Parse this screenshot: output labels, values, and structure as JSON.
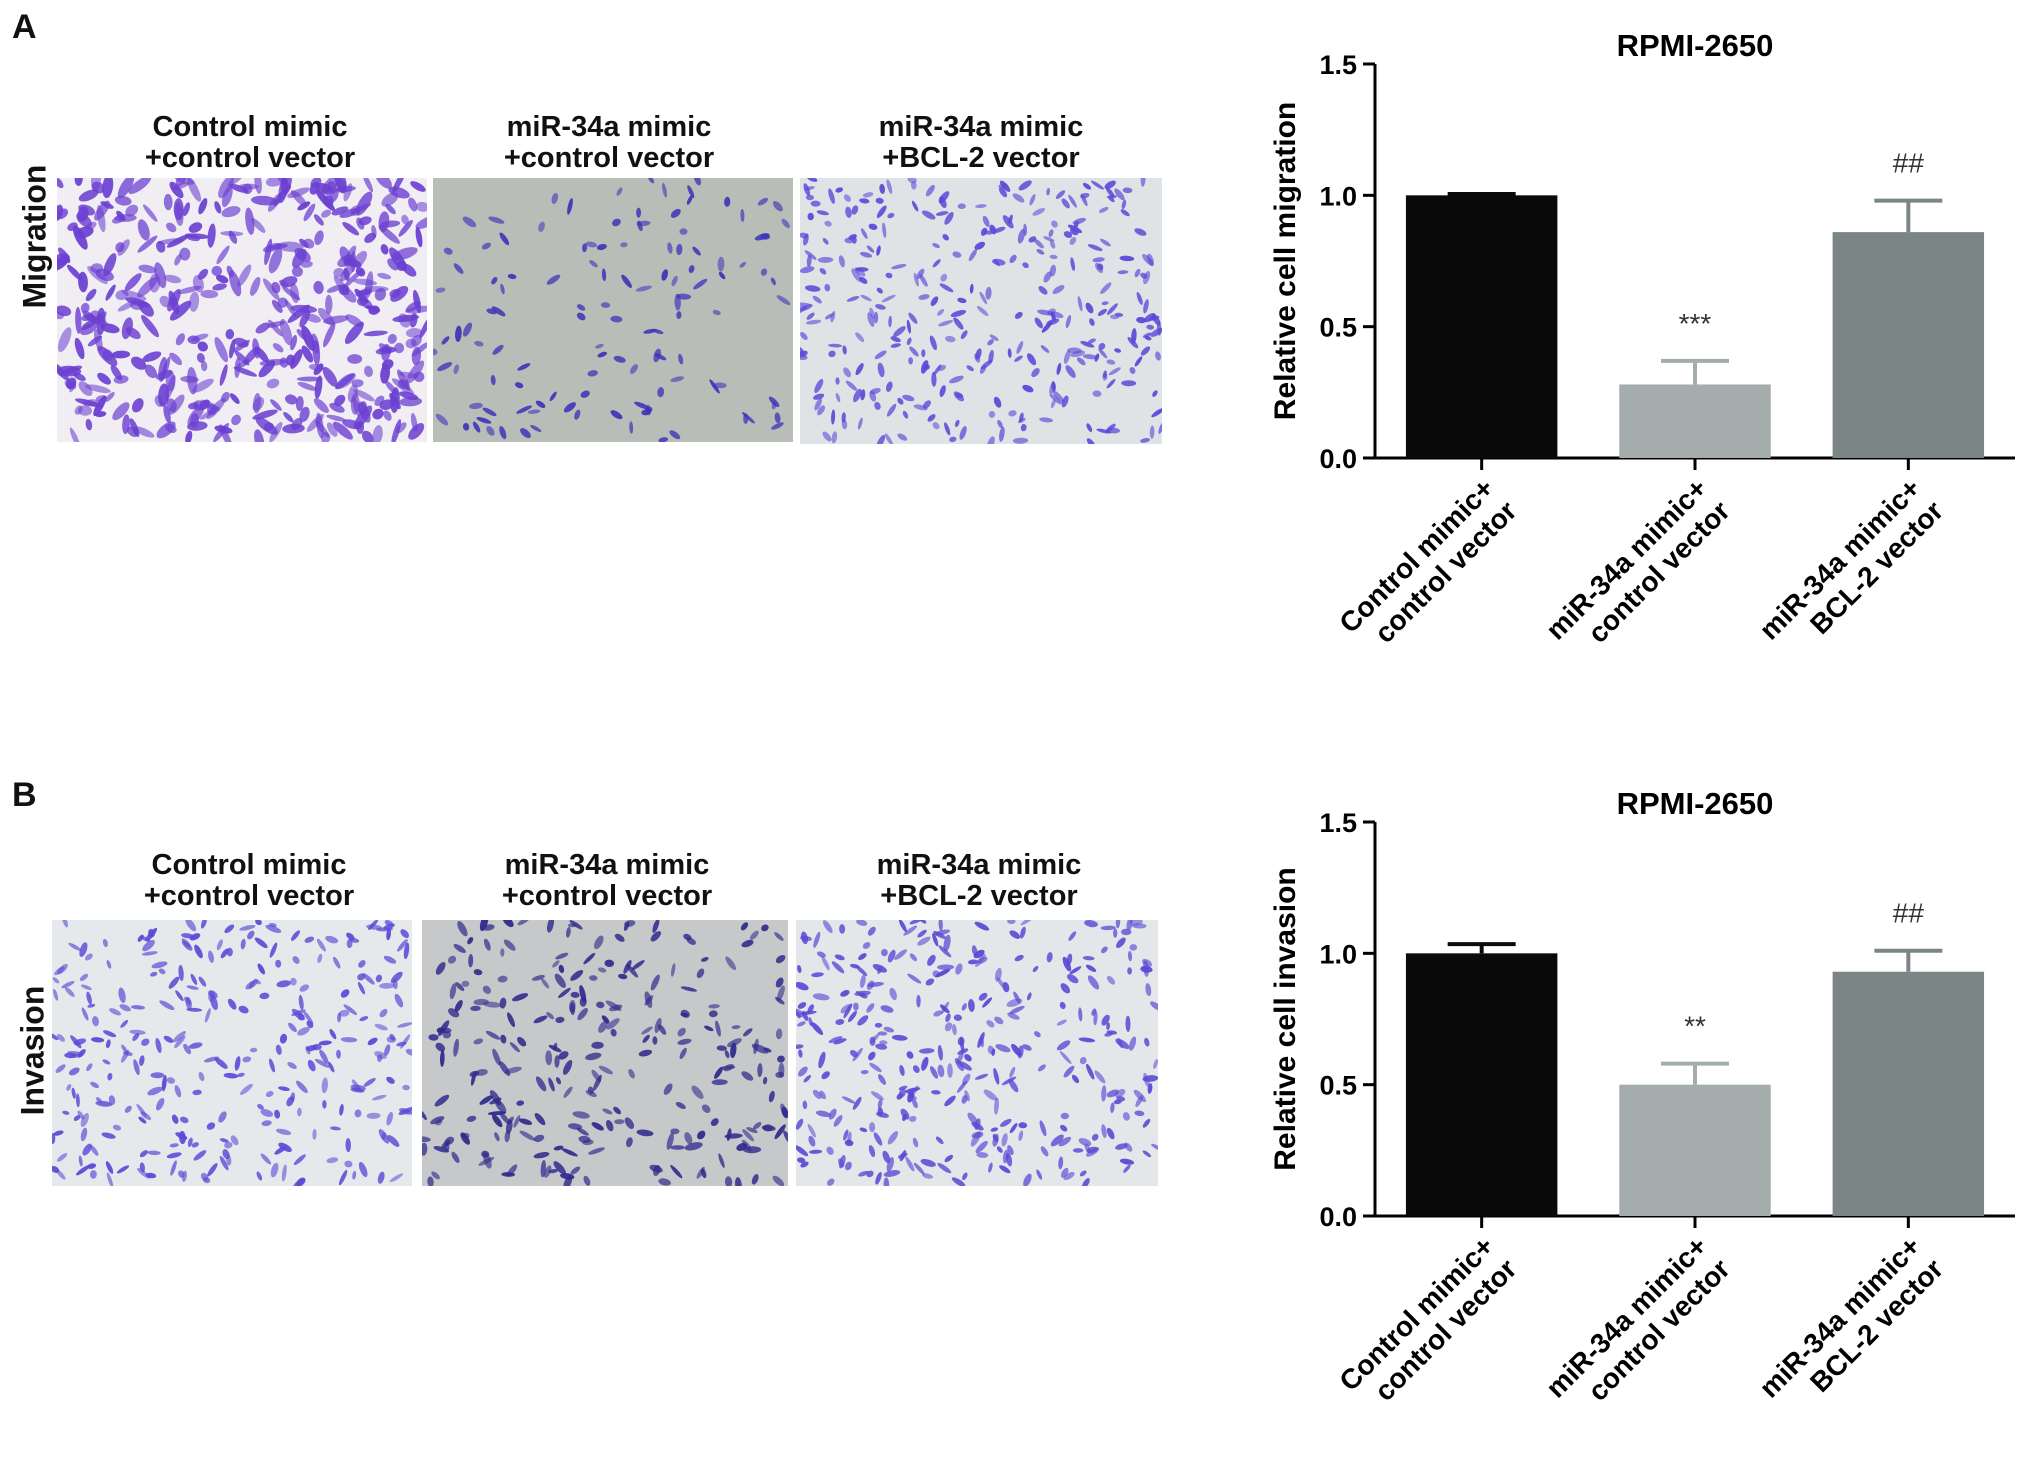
{
  "panels": [
    {
      "letter": "A",
      "row_label": "Migration",
      "micrographs": [
        {
          "line1": "Control mimic",
          "line2": "+control vector",
          "bg": "#f1eef3",
          "cell_color": "#6b3fd1",
          "density": 430,
          "scale": 1.0
        },
        {
          "line1": "miR-34a mimic",
          "line2": "+control vector",
          "bg": "#b9bdb8",
          "cell_color": "#3d35b8",
          "density": 120,
          "scale": 0.55
        },
        {
          "line1": "miR-34a mimic",
          "line2": "+BCL-2 vector",
          "bg": "#dfe3e6",
          "cell_color": "#5b48d8",
          "density": 330,
          "scale": 0.5
        }
      ],
      "chart": {
        "title": "RPMI-2650",
        "ylabel": "Relative cell migration",
        "ylim": [
          0,
          1.5
        ],
        "yticks": [
          "0.0",
          "0.5",
          "1.0",
          "1.5"
        ],
        "categories": [
          [
            "Control mimic+",
            "control vector"
          ],
          [
            "miR-34a mimic+",
            "control vector"
          ],
          [
            "miR-34a mimic+",
            "BCL-2 vector"
          ]
        ],
        "values": [
          1.0,
          0.28,
          0.86
        ],
        "errors": [
          0.005,
          0.09,
          0.12
        ],
        "annotations": [
          "",
          "***",
          "##"
        ],
        "colors": [
          "#0a0a0a",
          "#a5acac",
          "#7c8586"
        ]
      }
    },
    {
      "letter": "B",
      "row_label": "Invasion",
      "micrographs": [
        {
          "line1": "Control mimic",
          "line2": "+control vector",
          "bg": "#e6e9ec",
          "cell_color": "#5b4ad6",
          "density": 300,
          "scale": 0.55
        },
        {
          "line1": "miR-34a mimic",
          "line2": "+control vector",
          "bg": "#c6c8c9",
          "cell_color": "#2f2a8c",
          "density": 260,
          "scale": 0.6
        },
        {
          "line1": "miR-34a mimic",
          "line2": "+BCL-2 vector",
          "bg": "#e4e7ea",
          "cell_color": "#5a48d4",
          "density": 340,
          "scale": 0.55
        }
      ],
      "chart": {
        "title": "RPMI-2650",
        "ylabel": "Relative cell invasion",
        "ylim": [
          0,
          1.5
        ],
        "yticks": [
          "0.0",
          "0.5",
          "1.0",
          "1.5"
        ],
        "categories": [
          [
            "Control mimic+",
            "control vector"
          ],
          [
            "miR-34a mimic+",
            "control vector"
          ],
          [
            "miR-34a mimic+",
            "BCL-2 vector"
          ]
        ],
        "values": [
          1.0,
          0.5,
          0.93
        ],
        "errors": [
          0.035,
          0.08,
          0.08
        ],
        "annotations": [
          "",
          "**",
          "##"
        ],
        "colors": [
          "#0a0a0a",
          "#a5acac",
          "#7c8586"
        ]
      }
    }
  ],
  "chart_data": [
    {
      "type": "bar",
      "title": "RPMI-2650",
      "ylabel": "Relative cell migration",
      "xlabel": "",
      "categories": [
        "Control mimic+ control vector",
        "miR-34a mimic+ control vector",
        "miR-34a mimic+ BCL-2 vector"
      ],
      "values": [
        1.0,
        0.28,
        0.86
      ],
      "error_bars": [
        0.005,
        0.09,
        0.12
      ],
      "annotations": [
        "",
        "***",
        "##"
      ],
      "ylim": [
        0,
        1.5
      ],
      "grid": false
    },
    {
      "type": "bar",
      "title": "RPMI-2650",
      "ylabel": "Relative cell invasion",
      "xlabel": "",
      "categories": [
        "Control mimic+ control vector",
        "miR-34a mimic+ control vector",
        "miR-34a mimic+ BCL-2 vector"
      ],
      "values": [
        1.0,
        0.5,
        0.93
      ],
      "error_bars": [
        0.035,
        0.08,
        0.08
      ],
      "annotations": [
        "",
        "**",
        "##"
      ],
      "ylim": [
        0,
        1.5
      ],
      "grid": false
    }
  ]
}
